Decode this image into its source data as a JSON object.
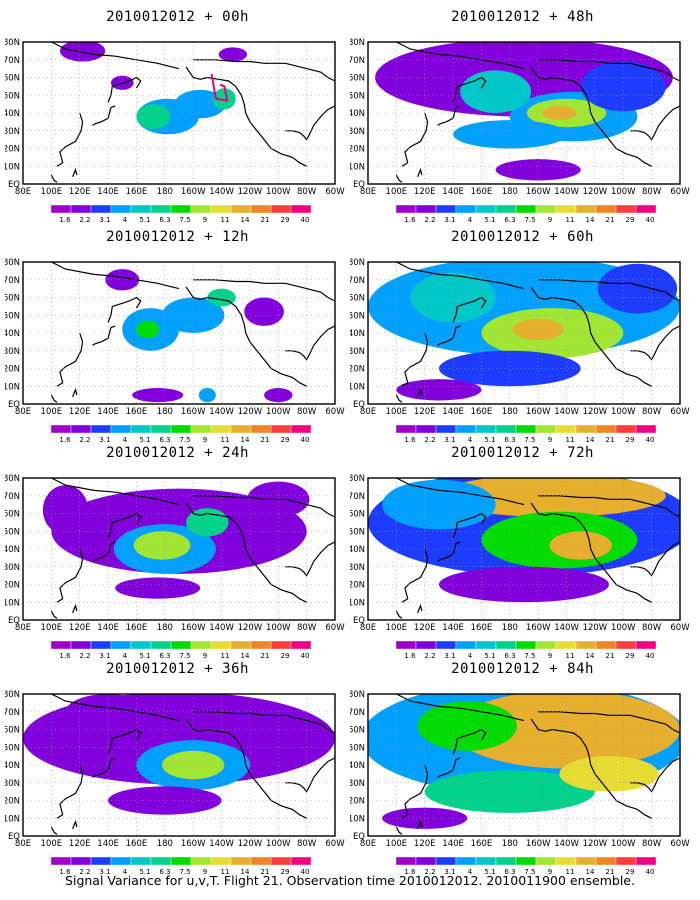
{
  "figure": {
    "footer": "Signal Variance for u,v,T. Flight 21. Observation time 2010012012. 2010011900 ensemble."
  },
  "map": {
    "lat_labels": [
      "EQ",
      "10N",
      "20N",
      "30N",
      "40N",
      "50N",
      "60N",
      "70N",
      "80N"
    ],
    "lon_labels": [
      "80E",
      "100E",
      "120E",
      "140E",
      "160E",
      "180",
      "160W",
      "140W",
      "120W",
      "100W",
      "80W",
      "60W"
    ],
    "lon_range": [
      80,
      300
    ],
    "lat_range": [
      0,
      80
    ]
  },
  "colorbar": {
    "levels": [
      "1.6",
      "2.2",
      "3.1",
      "4",
      "5.1",
      "6.3",
      "7.5",
      "9",
      "11",
      "14",
      "21",
      "29",
      "40"
    ],
    "colors": [
      "#a000c8",
      "#8200dc",
      "#1e3cff",
      "#00a0ff",
      "#00c8c8",
      "#00d28c",
      "#00dc00",
      "#a0e632",
      "#e6dc32",
      "#e6af2d",
      "#f08228",
      "#fa3c3c",
      "#f00082"
    ]
  },
  "panels": [
    {
      "id": "p00",
      "title": "2010012012 + 00h",
      "flight_track": true,
      "blobs": [
        {
          "lon": 182,
          "lat": 38,
          "w": 22,
          "h": 10,
          "level": 3
        },
        {
          "lon": 172,
          "lat": 38,
          "w": 12,
          "h": 7,
          "level": 5
        },
        {
          "lon": 205,
          "lat": 45,
          "w": 18,
          "h": 8,
          "level": 3
        },
        {
          "lon": 222,
          "lat": 48,
          "w": 8,
          "h": 6,
          "level": 5
        },
        {
          "lon": 150,
          "lat": 57,
          "w": 8,
          "h": 4,
          "level": 1
        },
        {
          "lon": 122,
          "lat": 75,
          "w": 16,
          "h": 6,
          "level": 1
        },
        {
          "lon": 228,
          "lat": 73,
          "w": 10,
          "h": 4,
          "level": 1
        }
      ]
    },
    {
      "id": "p48",
      "title": "2010012012 + 48h",
      "flight_track": false,
      "blobs": [
        {
          "lon": 190,
          "lat": 60,
          "w": 105,
          "h": 22,
          "level": 1
        },
        {
          "lon": 225,
          "lat": 38,
          "w": 45,
          "h": 14,
          "level": 3
        },
        {
          "lon": 220,
          "lat": 40,
          "w": 28,
          "h": 8,
          "level": 7
        },
        {
          "lon": 215,
          "lat": 40,
          "w": 12,
          "h": 4,
          "level": 9
        },
        {
          "lon": 180,
          "lat": 28,
          "w": 40,
          "h": 8,
          "level": 3
        },
        {
          "lon": 170,
          "lat": 52,
          "w": 25,
          "h": 12,
          "level": 4
        },
        {
          "lon": 260,
          "lat": 55,
          "w": 30,
          "h": 14,
          "level": 2
        },
        {
          "lon": 200,
          "lat": 8,
          "w": 30,
          "h": 6,
          "level": 1
        }
      ]
    },
    {
      "id": "p12",
      "title": "2010012012 + 12h",
      "flight_track": false,
      "blobs": [
        {
          "lon": 170,
          "lat": 42,
          "w": 20,
          "h": 12,
          "level": 3
        },
        {
          "lon": 168,
          "lat": 42,
          "w": 8,
          "h": 5,
          "level": 6
        },
        {
          "lon": 200,
          "lat": 50,
          "w": 22,
          "h": 10,
          "level": 3
        },
        {
          "lon": 220,
          "lat": 60,
          "w": 10,
          "h": 5,
          "level": 5
        },
        {
          "lon": 150,
          "lat": 70,
          "w": 12,
          "h": 6,
          "level": 1
        },
        {
          "lon": 250,
          "lat": 52,
          "w": 14,
          "h": 8,
          "level": 1
        },
        {
          "lon": 175,
          "lat": 5,
          "w": 18,
          "h": 4,
          "level": 1
        },
        {
          "lon": 210,
          "lat": 5,
          "w": 6,
          "h": 4,
          "level": 3
        },
        {
          "lon": 260,
          "lat": 5,
          "w": 10,
          "h": 4,
          "level": 1
        }
      ]
    },
    {
      "id": "p60",
      "title": "2010012012 + 60h",
      "flight_track": false,
      "blobs": [
        {
          "lon": 190,
          "lat": 55,
          "w": 110,
          "h": 28,
          "level": 3
        },
        {
          "lon": 210,
          "lat": 40,
          "w": 50,
          "h": 14,
          "level": 7
        },
        {
          "lon": 200,
          "lat": 42,
          "w": 18,
          "h": 6,
          "level": 9
        },
        {
          "lon": 140,
          "lat": 60,
          "w": 30,
          "h": 14,
          "level": 4
        },
        {
          "lon": 180,
          "lat": 20,
          "w": 50,
          "h": 10,
          "level": 2
        },
        {
          "lon": 130,
          "lat": 8,
          "w": 30,
          "h": 6,
          "level": 1
        },
        {
          "lon": 270,
          "lat": 65,
          "w": 28,
          "h": 14,
          "level": 2
        }
      ]
    },
    {
      "id": "p24",
      "title": "2010012012 + 24h",
      "flight_track": false,
      "blobs": [
        {
          "lon": 190,
          "lat": 50,
          "w": 90,
          "h": 24,
          "level": 1
        },
        {
          "lon": 180,
          "lat": 40,
          "w": 36,
          "h": 14,
          "level": 3
        },
        {
          "lon": 178,
          "lat": 42,
          "w": 20,
          "h": 8,
          "level": 7
        },
        {
          "lon": 210,
          "lat": 55,
          "w": 15,
          "h": 8,
          "level": 5
        },
        {
          "lon": 110,
          "lat": 62,
          "w": 16,
          "h": 14,
          "level": 1
        },
        {
          "lon": 260,
          "lat": 68,
          "w": 22,
          "h": 10,
          "level": 1
        },
        {
          "lon": 175,
          "lat": 18,
          "w": 30,
          "h": 6,
          "level": 1
        }
      ]
    },
    {
      "id": "p72",
      "title": "2010012012 + 72h",
      "flight_track": false,
      "blobs": [
        {
          "lon": 195,
          "lat": 55,
          "w": 115,
          "h": 30,
          "level": 2
        },
        {
          "lon": 210,
          "lat": 70,
          "w": 80,
          "h": 12,
          "level": 9
        },
        {
          "lon": 215,
          "lat": 45,
          "w": 55,
          "h": 16,
          "level": 6
        },
        {
          "lon": 230,
          "lat": 42,
          "w": 22,
          "h": 8,
          "level": 9
        },
        {
          "lon": 130,
          "lat": 65,
          "w": 40,
          "h": 14,
          "level": 3
        },
        {
          "lon": 190,
          "lat": 20,
          "w": 60,
          "h": 10,
          "level": 1
        }
      ]
    },
    {
      "id": "p36",
      "title": "2010012012 + 36h",
      "flight_track": false,
      "blobs": [
        {
          "lon": 190,
          "lat": 55,
          "w": 110,
          "h": 26,
          "level": 1
        },
        {
          "lon": 200,
          "lat": 40,
          "w": 40,
          "h": 14,
          "level": 3
        },
        {
          "lon": 200,
          "lat": 40,
          "w": 22,
          "h": 8,
          "level": 7
        },
        {
          "lon": 140,
          "lat": 70,
          "w": 30,
          "h": 10,
          "level": 1
        },
        {
          "lon": 180,
          "lat": 20,
          "w": 40,
          "h": 8,
          "level": 1
        },
        {
          "lon": 260,
          "lat": 55,
          "w": 20,
          "h": 10,
          "level": 1
        }
      ]
    },
    {
      "id": "p84",
      "title": "2010012012 + 84h",
      "flight_track": false,
      "blobs": [
        {
          "lon": 190,
          "lat": 55,
          "w": 115,
          "h": 32,
          "level": 3
        },
        {
          "lon": 220,
          "lat": 60,
          "w": 80,
          "h": 22,
          "level": 9
        },
        {
          "lon": 150,
          "lat": 62,
          "w": 35,
          "h": 14,
          "level": 6
        },
        {
          "lon": 180,
          "lat": 25,
          "w": 60,
          "h": 12,
          "level": 5
        },
        {
          "lon": 250,
          "lat": 35,
          "w": 35,
          "h": 10,
          "level": 8
        },
        {
          "lon": 120,
          "lat": 10,
          "w": 30,
          "h": 6,
          "level": 1
        }
      ]
    }
  ]
}
